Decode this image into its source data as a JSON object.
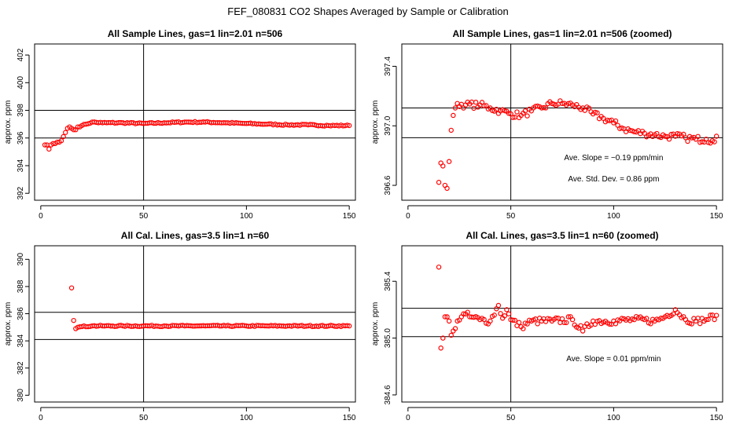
{
  "title": "FEF_080831  CO2 Shapes Averaged by Sample or Calibration",
  "chart_data": [
    {
      "id": "sample-full",
      "type": "scatter",
      "title": "All Sample Lines, gas=1 lin=2.01 n=506",
      "xlabel": "",
      "ylabel": "approx. ppm",
      "xlim": [
        -3,
        153
      ],
      "ylim": [
        391.5,
        402.8
      ],
      "xticks": [
        0,
        50,
        100,
        150
      ],
      "yticks": [
        392,
        394,
        396,
        398,
        400,
        402
      ],
      "hlines": [
        396.0,
        398.0
      ],
      "vlines": [
        50
      ],
      "color": "#ff0000",
      "key_points": [
        [
          2,
          395.5
        ],
        [
          3,
          395.5
        ],
        [
          4,
          395.2
        ],
        [
          5,
          395.5
        ],
        [
          6,
          395.6
        ],
        [
          7,
          395.6
        ],
        [
          8,
          395.7
        ],
        [
          9,
          395.7
        ],
        [
          10,
          395.8
        ],
        [
          11,
          396.1
        ],
        [
          12,
          396.4
        ],
        [
          13,
          396.7
        ],
        [
          14,
          396.8
        ],
        [
          15,
          396.7
        ],
        [
          16,
          396.6
        ],
        [
          17,
          396.6
        ],
        [
          18,
          396.8
        ],
        [
          20,
          396.9
        ],
        [
          22,
          397.0
        ],
        [
          25,
          397.15
        ],
        [
          30,
          397.1
        ],
        [
          40,
          397.1
        ],
        [
          50,
          397.05
        ],
        [
          60,
          397.1
        ],
        [
          70,
          397.15
        ],
        [
          80,
          397.15
        ],
        [
          90,
          397.1
        ],
        [
          100,
          397.05
        ],
        [
          110,
          397.0
        ],
        [
          120,
          396.95
        ],
        [
          130,
          396.95
        ],
        [
          140,
          396.9
        ],
        [
          150,
          396.9
        ]
      ],
      "annotations": []
    },
    {
      "id": "sample-zoomed",
      "type": "scatter",
      "title": "All Sample Lines, gas=1 lin=2.01 n=506 (zoomed)",
      "xlabel": "",
      "ylabel": "approx. ppm",
      "xlim": [
        -3,
        153
      ],
      "ylim": [
        396.5,
        397.55
      ],
      "xticks": [
        0,
        50,
        100,
        150
      ],
      "yticks": [
        396.6,
        397.0,
        397.4
      ],
      "hlines": [
        396.92,
        397.12
      ],
      "vlines": [
        50
      ],
      "color": "#ff0000",
      "key_points": [
        [
          15,
          396.62
        ],
        [
          16,
          396.75
        ],
        [
          17,
          396.73
        ],
        [
          18,
          396.6
        ],
        [
          19,
          396.58
        ],
        [
          20,
          396.76
        ],
        [
          21,
          396.97
        ],
        [
          22,
          397.07
        ],
        [
          23,
          397.12
        ],
        [
          24,
          397.15
        ],
        [
          28,
          397.14
        ],
        [
          35,
          397.14
        ],
        [
          40,
          397.12
        ],
        [
          45,
          397.1
        ],
        [
          50,
          397.08
        ],
        [
          55,
          397.07
        ],
        [
          60,
          397.1
        ],
        [
          65,
          397.12
        ],
        [
          70,
          397.15
        ],
        [
          75,
          397.15
        ],
        [
          80,
          397.14
        ],
        [
          85,
          397.12
        ],
        [
          90,
          397.08
        ],
        [
          95,
          397.05
        ],
        [
          100,
          397.02
        ],
        [
          105,
          396.98
        ],
        [
          110,
          396.96
        ],
        [
          115,
          396.95
        ],
        [
          120,
          396.94
        ],
        [
          125,
          396.93
        ],
        [
          130,
          396.93
        ],
        [
          135,
          396.92
        ],
        [
          140,
          396.91
        ],
        [
          145,
          396.91
        ],
        [
          148,
          396.9
        ],
        [
          150,
          396.93
        ]
      ],
      "annotations": [
        "Ave. Slope = −0.19  ppm/min",
        "Ave. Std. Dev. = 0.86  ppm"
      ]
    },
    {
      "id": "cal-full",
      "type": "scatter",
      "title": "All Cal. Lines, gas=3.5 lin=1 n=60",
      "xlabel": "",
      "ylabel": "approx. ppm",
      "xlim": [
        -3,
        153
      ],
      "ylim": [
        379.5,
        391.0
      ],
      "xticks": [
        0,
        50,
        100,
        150
      ],
      "yticks": [
        380,
        382,
        384,
        386,
        388,
        390
      ],
      "hlines": [
        384.1,
        386.1
      ],
      "vlines": [
        50
      ],
      "color": "#ff0000",
      "key_points": [
        [
          15,
          387.9
        ],
        [
          16,
          385.5
        ],
        [
          17,
          384.9
        ],
        [
          18,
          385.0
        ],
        [
          20,
          385.05
        ],
        [
          25,
          385.1
        ],
        [
          30,
          385.1
        ],
        [
          40,
          385.1
        ],
        [
          50,
          385.1
        ],
        [
          60,
          385.1
        ],
        [
          70,
          385.1
        ],
        [
          80,
          385.1
        ],
        [
          90,
          385.1
        ],
        [
          100,
          385.1
        ],
        [
          110,
          385.1
        ],
        [
          120,
          385.1
        ],
        [
          130,
          385.1
        ],
        [
          140,
          385.1
        ],
        [
          150,
          385.1
        ]
      ],
      "annotations": []
    },
    {
      "id": "cal-zoomed",
      "type": "scatter",
      "title": "All Cal. Lines, gas=3.5 lin=1 n=60 (zoomed)",
      "xlabel": "",
      "ylabel": "approx. ppm",
      "xlim": [
        -3,
        153
      ],
      "ylim": [
        384.55,
        385.65
      ],
      "xticks": [
        0,
        50,
        100,
        150
      ],
      "yticks": [
        384.6,
        385.0,
        385.4
      ],
      "hlines": [
        385.01,
        385.21
      ],
      "vlines": [
        50
      ],
      "color": "#ff0000",
      "key_points": [
        [
          15,
          385.5
        ],
        [
          16,
          384.93
        ],
        [
          17,
          385.0
        ],
        [
          18,
          385.15
        ],
        [
          19,
          385.15
        ],
        [
          20,
          385.12
        ],
        [
          21,
          385.02
        ],
        [
          22,
          385.05
        ],
        [
          24,
          385.12
        ],
        [
          26,
          385.15
        ],
        [
          28,
          385.17
        ],
        [
          30,
          385.15
        ],
        [
          35,
          385.13
        ],
        [
          40,
          385.12
        ],
        [
          44,
          385.23
        ],
        [
          46,
          385.14
        ],
        [
          48,
          385.2
        ],
        [
          50,
          385.13
        ],
        [
          55,
          385.08
        ],
        [
          60,
          385.12
        ],
        [
          70,
          385.12
        ],
        [
          80,
          385.13
        ],
        [
          85,
          385.05
        ],
        [
          90,
          385.12
        ],
        [
          100,
          385.12
        ],
        [
          110,
          385.13
        ],
        [
          120,
          385.12
        ],
        [
          125,
          385.15
        ],
        [
          130,
          385.2
        ],
        [
          135,
          385.13
        ],
        [
          140,
          385.12
        ],
        [
          145,
          385.13
        ],
        [
          150,
          385.16
        ]
      ],
      "annotations": [
        "Ave. Slope = 0.01  ppm/min"
      ]
    }
  ]
}
